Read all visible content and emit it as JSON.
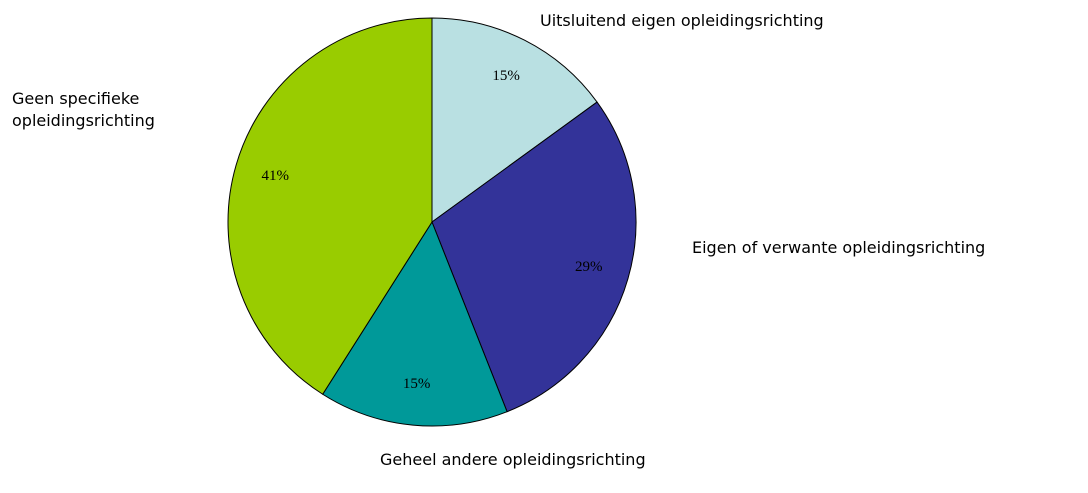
{
  "chart_data": {
    "type": "pie",
    "categories": [
      "Uitsluitend eigen opleidingsrichting",
      "Eigen of verwante opleidingsrichting",
      "Geheel andere opleidingsrichting",
      "Geen specifieke opleidingsrichting"
    ],
    "values": [
      15,
      29,
      15,
      41
    ],
    "value_labels": [
      "15%",
      "29%",
      "15%",
      "41%"
    ],
    "colors": [
      "#b9e0e2",
      "#333399",
      "#009999",
      "#99cc00"
    ]
  }
}
